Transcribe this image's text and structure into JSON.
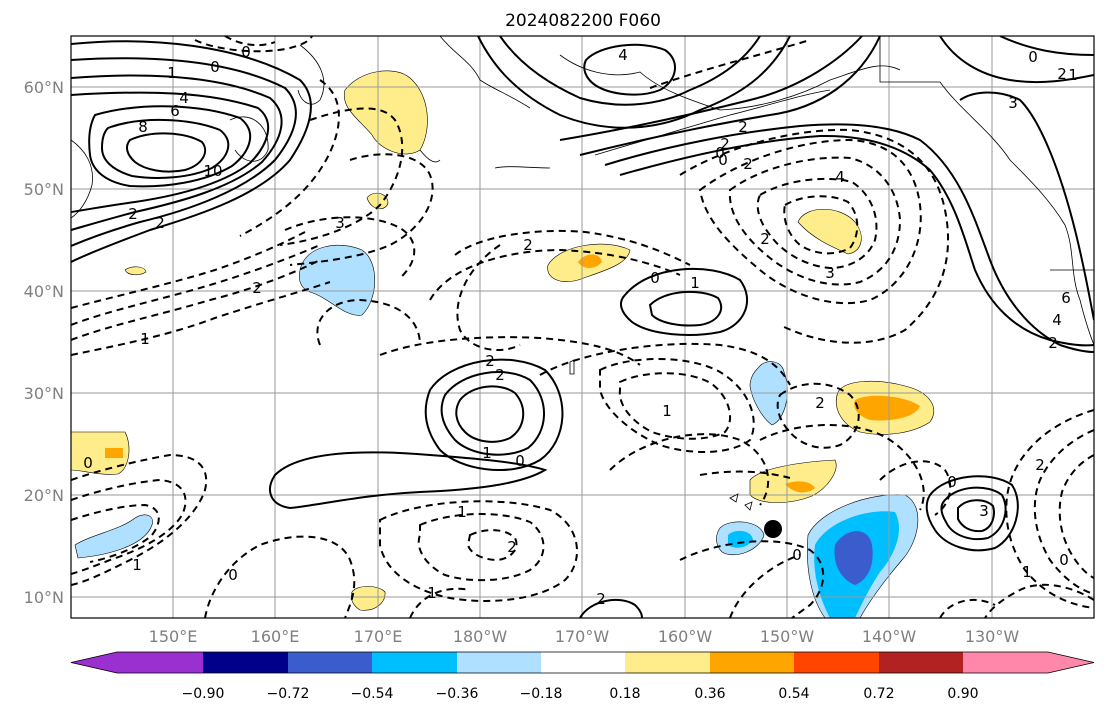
{
  "title": "2024082200 F060",
  "lat_labels": [
    "60°N",
    "50°N",
    "40°N",
    "30°N",
    "20°N",
    "10°N"
  ],
  "lon_labels": [
    "150°E",
    "160°E",
    "170°E",
    "180°W",
    "170°W",
    "160°W",
    "150°W",
    "140°W",
    "130°W"
  ],
  "colorbar": {
    "ticks": [
      "−0.90",
      "−0.72",
      "−0.54",
      "−0.36",
      "−0.18",
      "0.18",
      "0.36",
      "0.54",
      "0.72",
      "0.90"
    ],
    "colors": [
      "#9b30d0",
      "#00008b",
      "#3a5ccc",
      "#00bfff",
      "#b0e0ff",
      "#ffffff",
      "#ffec8b",
      "#ffa500",
      "#ff4500",
      "#b22222",
      "#ff88aa"
    ]
  },
  "contour_labels": [
    "1",
    "0",
    "4",
    "6",
    "8",
    "10",
    "2",
    "2",
    "0",
    "4",
    "2",
    "2",
    "0",
    "2",
    "0",
    "4",
    "2",
    "3",
    "3",
    "2",
    "2",
    "1",
    "0",
    "1",
    "2",
    "2",
    "1",
    "0",
    "2",
    "1",
    "1",
    "2",
    "3",
    "0",
    "1",
    "0",
    "1",
    "2",
    "6",
    "4",
    "2",
    "0",
    "2",
    "1",
    "3",
    "0",
    "2",
    "0",
    "0",
    "1"
  ]
}
